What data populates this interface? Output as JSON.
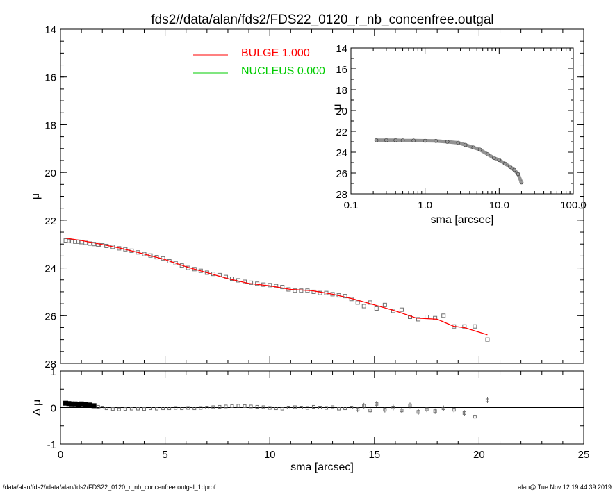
{
  "title": "fds2//data/alan/fds2/FDS22_0120_r_nb_concenfree.outgal",
  "footer": {
    "left": "/data/alan/fds2//data/alan/fds2/FDS22_0120_r_nb_concenfree.outgal_1dprof",
    "right": "alan@  Tue Nov 12 19:44:39 2019"
  },
  "colors": {
    "bulge": "#ff0000",
    "nucleus": "#00cc00",
    "data": "#707070",
    "axis": "#000000"
  },
  "chart_data": [
    {
      "type": "scatter",
      "panel": "main",
      "xlabel": "",
      "ylabel": "μ",
      "xlim": [
        0,
        25
      ],
      "ylim": [
        28,
        14
      ],
      "y_inverted": true,
      "xticks": [
        0,
        5,
        10,
        15,
        20,
        25
      ],
      "yticks": [
        14,
        16,
        18,
        20,
        22,
        24,
        26,
        28
      ],
      "legend_position": "top",
      "legend": [
        {
          "name": "BULGE",
          "value": "1.000",
          "color": "#ff0000"
        },
        {
          "name": "NUCLEUS",
          "value": "0.000",
          "color": "#00cc00"
        }
      ],
      "series": [
        {
          "name": "data",
          "style": "squares",
          "x": [
            0.25,
            0.4,
            0.55,
            0.7,
            0.85,
            1.0,
            1.2,
            1.4,
            1.6,
            1.8,
            2.0,
            2.2,
            2.5,
            2.8,
            3.1,
            3.4,
            3.7,
            4.0,
            4.3,
            4.6,
            4.9,
            5.2,
            5.5,
            5.8,
            6.1,
            6.4,
            6.7,
            7.0,
            7.3,
            7.6,
            7.9,
            8.2,
            8.5,
            8.8,
            9.1,
            9.4,
            9.7,
            10.0,
            10.3,
            10.6,
            10.9,
            11.2,
            11.5,
            11.8,
            12.1,
            12.4,
            12.7,
            13.0,
            13.3,
            13.6,
            13.9,
            14.2,
            14.5,
            14.8,
            15.1,
            15.5,
            15.9,
            16.3,
            16.7,
            17.1,
            17.5,
            17.9,
            18.3,
            18.8,
            19.3,
            19.8,
            20.4
          ],
          "y": [
            22.85,
            22.87,
            22.88,
            22.9,
            22.9,
            22.92,
            22.95,
            22.98,
            23.0,
            23.02,
            23.05,
            23.08,
            23.12,
            23.18,
            23.22,
            23.28,
            23.35,
            23.42,
            23.48,
            23.55,
            23.6,
            23.72,
            23.8,
            23.9,
            24.0,
            24.05,
            24.12,
            24.2,
            24.25,
            24.3,
            24.38,
            24.45,
            24.52,
            24.58,
            24.62,
            24.66,
            24.7,
            24.72,
            24.76,
            24.8,
            24.9,
            24.95,
            24.95,
            24.95,
            25.0,
            25.05,
            25.05,
            25.1,
            25.15,
            25.18,
            25.3,
            25.45,
            25.6,
            25.45,
            25.7,
            25.55,
            25.8,
            25.75,
            26.05,
            26.15,
            26.05,
            26.1,
            26.0,
            26.45,
            26.45,
            26.45,
            27.0
          ]
        },
        {
          "name": "BULGE",
          "style": "line",
          "x": [
            0.25,
            1.0,
            2.0,
            3.0,
            4.0,
            5.0,
            6.0,
            7.0,
            8.0,
            9.0,
            10.0,
            11.0,
            12.0,
            13.0,
            14.0,
            15.0,
            16.0,
            17.0,
            18.0,
            18.8,
            19.3,
            20.4
          ],
          "y": [
            22.75,
            22.85,
            23.02,
            23.2,
            23.42,
            23.65,
            23.95,
            24.2,
            24.45,
            24.65,
            24.75,
            24.9,
            24.95,
            25.1,
            25.3,
            25.55,
            25.8,
            26.1,
            26.15,
            26.45,
            26.5,
            26.8
          ]
        }
      ]
    },
    {
      "type": "scatter",
      "panel": "inset",
      "xlabel": "sma [arcsec]",
      "ylabel": "μ",
      "x_scale": "log",
      "xlim": [
        0.1,
        100.0
      ],
      "ylim": [
        28,
        14
      ],
      "y_inverted": true,
      "xticks": [
        "0.1",
        "1.0",
        "10.0",
        "100.0"
      ],
      "yticks": [
        14,
        16,
        18,
        20,
        22,
        24,
        26,
        28
      ],
      "series": [
        {
          "name": "data",
          "style": "circles",
          "x": [
            0.22,
            0.3,
            0.4,
            0.5,
            0.7,
            1.0,
            1.4,
            2.0,
            2.8,
            3.5,
            4.5,
            5.5,
            7.0,
            8.5,
            10.0,
            12.0,
            14.0,
            16.0,
            18.0,
            20.0
          ],
          "y": [
            22.85,
            22.85,
            22.85,
            22.87,
            22.88,
            22.9,
            22.92,
            23.0,
            23.1,
            23.3,
            23.55,
            23.75,
            24.2,
            24.55,
            24.75,
            25.1,
            25.4,
            25.7,
            26.1,
            26.9
          ]
        }
      ]
    },
    {
      "type": "scatter",
      "panel": "residual",
      "xlabel": "sma [arcsec]",
      "ylabel": "Δ μ",
      "xlim": [
        0,
        25
      ],
      "ylim": [
        -1,
        1
      ],
      "xticks": [
        0,
        5,
        10,
        15,
        20,
        25
      ],
      "yticks": [
        1,
        0,
        -1
      ],
      "zero_line": true,
      "series": [
        {
          "name": "residuals",
          "x": [
            0.25,
            0.4,
            0.55,
            0.7,
            0.85,
            1.0,
            1.2,
            1.4,
            1.6,
            1.8,
            2.0,
            2.2,
            2.5,
            2.8,
            3.1,
            3.4,
            3.7,
            4.0,
            4.3,
            4.6,
            4.9,
            5.2,
            5.5,
            5.8,
            6.1,
            6.4,
            6.7,
            7.0,
            7.3,
            7.6,
            7.9,
            8.2,
            8.5,
            8.8,
            9.1,
            9.4,
            9.7,
            10.0,
            10.3,
            10.6,
            10.9,
            11.2,
            11.5,
            11.8,
            12.1,
            12.4,
            12.7,
            13.0,
            13.3,
            13.6,
            13.9,
            14.2,
            14.5,
            14.8,
            15.1,
            15.5,
            15.9,
            16.3,
            16.7,
            17.1,
            17.5,
            17.9,
            18.3,
            18.8,
            19.3,
            19.8,
            20.4
          ],
          "y": [
            0.12,
            0.11,
            0.1,
            0.1,
            0.09,
            0.1,
            0.08,
            0.07,
            0.05,
            0.02,
            0.0,
            -0.02,
            -0.04,
            -0.05,
            -0.04,
            -0.03,
            -0.03,
            -0.04,
            -0.02,
            -0.03,
            -0.02,
            -0.02,
            -0.01,
            -0.02,
            -0.01,
            -0.02,
            -0.01,
            0.0,
            0.01,
            0.02,
            0.03,
            0.04,
            0.05,
            0.04,
            0.03,
            0.02,
            0.01,
            -0.01,
            -0.02,
            -0.03,
            0.0,
            0.01,
            0.0,
            -0.01,
            0.02,
            0.0,
            -0.01,
            0.01,
            -0.03,
            -0.02,
            0.0,
            -0.05,
            0.05,
            -0.08,
            0.1,
            -0.06,
            0.0,
            -0.08,
            0.06,
            -0.12,
            -0.05,
            -0.1,
            -0.02,
            -0.06,
            -0.15,
            -0.25,
            0.2
          ]
        }
      ]
    }
  ]
}
